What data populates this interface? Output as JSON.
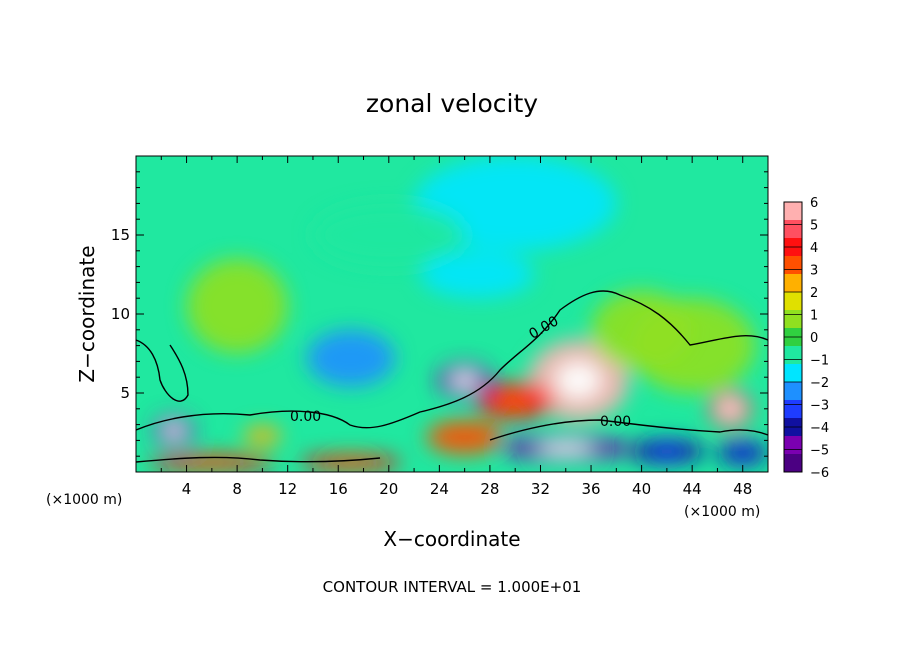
{
  "chart_data": {
    "type": "heatmap",
    "title": "zonal velocity",
    "xlabel": "X−coordinate",
    "ylabel": "Z−coordinate",
    "x_unit_left": "(×1000 m)",
    "x_unit_right": "(×1000 m)",
    "xlim": [
      0,
      50
    ],
    "ylim": [
      0,
      20
    ],
    "x_ticks": [
      4,
      8,
      12,
      16,
      20,
      24,
      28,
      32,
      36,
      40,
      44,
      48
    ],
    "y_ticks": [
      5,
      10,
      15
    ],
    "colorbar": {
      "ticks": [
        6,
        5,
        4,
        3,
        2,
        1,
        0,
        -1,
        -2,
        -3,
        -4,
        -5,
        -6
      ],
      "tick_labels": [
        "6",
        "5",
        "4",
        "3",
        "2",
        "1",
        "0",
        "−1",
        "−2",
        "−3",
        "−4",
        "−5",
        "−6"
      ],
      "colors": [
        "#4b0082",
        "#7a00b0",
        "#1010a0",
        "#1e3cff",
        "#1e90ff",
        "#00e5ff",
        "#20e8a0",
        "#30d040",
        "#90e020",
        "#e0e000",
        "#ffb000",
        "#ff5000",
        "#ff1010",
        "#ff5060",
        "#ffb0b0"
      ]
    },
    "contour_labels": [
      "0.00",
      "0.00",
      "0.00"
    ],
    "grid": false,
    "blobs": [
      {
        "x": 3,
        "z": 2.6,
        "value": -6,
        "rx": 1.6,
        "rz": 1.0
      },
      {
        "x": 26,
        "z": 5.8,
        "value": -6,
        "rx": 2.2,
        "rz": 1.1
      },
      {
        "x": 17,
        "z": 7.2,
        "value": -3,
        "rx": 3.5,
        "rz": 1.8
      },
      {
        "x": 27,
        "z": 12.5,
        "value": -2,
        "rx": 4.5,
        "rz": 1.5
      },
      {
        "x": 35,
        "z": 5.8,
        "value": 7,
        "rx": 4.0,
        "rz": 2.6
      },
      {
        "x": 30,
        "z": 4.5,
        "value": 5,
        "rx": 3.0,
        "rz": 1.2
      },
      {
        "x": 26,
        "z": 2.2,
        "value": 4,
        "rx": 3.0,
        "rz": 1.1
      },
      {
        "x": 47,
        "z": 4.0,
        "value": 6,
        "rx": 1.7,
        "rz": 1.2
      },
      {
        "x": 10,
        "z": 2.3,
        "value": 3,
        "rx": 1.5,
        "rz": 0.6
      },
      {
        "x": 6,
        "z": 0.6,
        "value": 5,
        "rx": 5,
        "rz": 0.5
      },
      {
        "x": 17,
        "z": 0.6,
        "value": 5,
        "rx": 4,
        "rz": 0.5
      },
      {
        "x": 34,
        "z": 1.5,
        "value": -6,
        "rx": 5,
        "rz": 0.8
      },
      {
        "x": 42,
        "z": 1.3,
        "value": -5,
        "rx": 3,
        "rz": 0.8
      },
      {
        "x": 48,
        "z": 1.2,
        "value": -5,
        "rx": 2,
        "rz": 0.8
      },
      {
        "x": 8,
        "z": 10.5,
        "value": 1,
        "rx": 4,
        "rz": 3
      },
      {
        "x": 44,
        "z": 8,
        "value": 1,
        "rx": 5,
        "rz": 3
      },
      {
        "x": 40,
        "z": 9,
        "value": 0.8,
        "rx": 4,
        "rz": 2.5
      },
      {
        "x": 30,
        "z": 17,
        "value": -1.6,
        "rx": 8,
        "rz": 3
      },
      {
        "x": 20,
        "z": 15,
        "value": -1.2,
        "rx": 6,
        "rz": 2
      }
    ],
    "background_value": -1
  },
  "caption": "CONTOUR INTERVAL = 1.000E+01"
}
